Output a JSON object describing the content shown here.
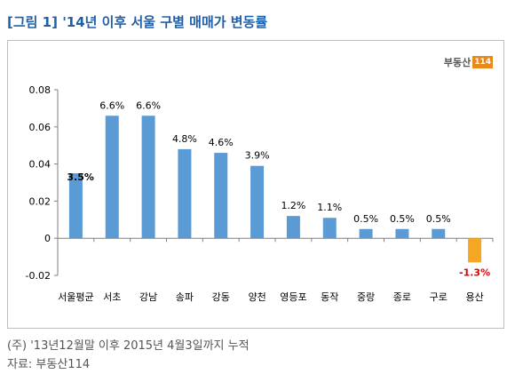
{
  "figure": {
    "title": "[그림 1] '14년 이후 서울 구별 매매가 변동률",
    "logo_text": "부동산",
    "logo_mark": "114",
    "note": "(주) '13년12월말 이후 2015년 4월3일까지 누적",
    "source": "자료: 부동산114"
  },
  "chart_data": {
    "type": "bar",
    "title": "",
    "xlabel": "",
    "ylabel": "",
    "ylim": [
      -0.02,
      0.08
    ],
    "yticks": [
      -0.02,
      0,
      0.02,
      0.04,
      0.06,
      0.08
    ],
    "ytick_labels": [
      "-0.02",
      "0",
      "0.02",
      "0.04",
      "0.06",
      "0.08"
    ],
    "grid": false,
    "categories": [
      "서울평균",
      "서초",
      "강남",
      "송파",
      "강동",
      "양천",
      "영등포",
      "동작",
      "중랑",
      "종로",
      "구로",
      "용산"
    ],
    "values": [
      0.035,
      0.066,
      0.066,
      0.048,
      0.046,
      0.039,
      0.012,
      0.011,
      0.005,
      0.005,
      0.005,
      -0.013
    ],
    "data_labels": [
      "3.5%",
      "6.6%",
      "6.6%",
      "4.8%",
      "4.6%",
      "3.9%",
      "1.2%",
      "1.1%",
      "0.5%",
      "0.5%",
      "0.5%",
      "-1.3%"
    ],
    "colors": {
      "bar": "#5b9bd5",
      "negative_bar": "#f5a623",
      "negative_label": "#e00000",
      "axis": "#7f7f7f"
    }
  }
}
